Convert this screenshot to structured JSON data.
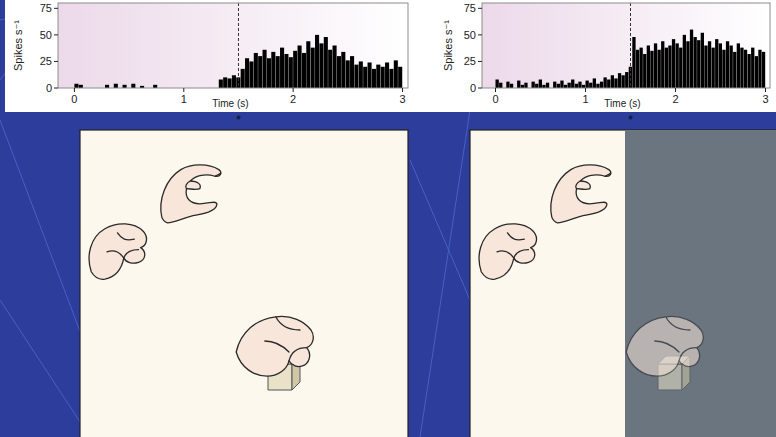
{
  "chart_data": [
    {
      "type": "histogram",
      "xlabel": "Time (s)",
      "ylabel": "Spikes s⁻¹",
      "annotation": "*",
      "event_line": 1.5,
      "xlim": [
        -0.15,
        3.05
      ],
      "xticks": [
        0,
        1,
        2,
        3
      ],
      "ylim": [
        0,
        80
      ],
      "yticks": [
        0,
        25,
        50,
        75
      ],
      "color": "#000000",
      "bins": [
        0,
        0.04,
        0.08,
        0.12,
        0.16,
        0.2,
        0.24,
        0.28,
        0.32,
        0.36,
        0.4,
        0.44,
        0.48,
        0.52,
        0.56,
        0.6,
        0.64,
        0.68,
        0.72,
        0.76,
        0.8,
        0.84,
        0.88,
        0.92,
        0.96,
        1,
        1.04,
        1.08,
        1.12,
        1.16,
        1.2,
        1.24,
        1.28,
        1.32,
        1.36,
        1.4,
        1.44,
        1.48,
        1.52,
        1.56,
        1.6,
        1.64,
        1.68,
        1.72,
        1.76,
        1.8,
        1.84,
        1.88,
        1.92,
        1.96,
        2,
        2.04,
        2.08,
        2.12,
        2.16,
        2.2,
        2.24,
        2.28,
        2.32,
        2.36,
        2.4,
        2.44,
        2.48,
        2.52,
        2.56,
        2.6,
        2.64,
        2.68,
        2.72,
        2.76,
        2.8,
        2.84,
        2.88,
        2.92,
        2.96,
        3
      ],
      "values": [
        4,
        3,
        0,
        0,
        0,
        0,
        0,
        3,
        0,
        4,
        0,
        3,
        0,
        4,
        0,
        2,
        0,
        0,
        3,
        0,
        0,
        0,
        0,
        0,
        0,
        0,
        0,
        0,
        0,
        0,
        0,
        0,
        0,
        8,
        10,
        9,
        12,
        10,
        18,
        28,
        25,
        33,
        30,
        36,
        28,
        34,
        30,
        38,
        32,
        29,
        35,
        40,
        33,
        44,
        38,
        50,
        42,
        48,
        36,
        40,
        30,
        34,
        26,
        30,
        22,
        25,
        20,
        24,
        18,
        22,
        20,
        24,
        18,
        26,
        20
      ]
    },
    {
      "type": "histogram",
      "xlabel": "Time (s)",
      "ylabel": "Spikes s⁻¹",
      "annotation": "*",
      "event_line": 1.5,
      "xlim": [
        -0.15,
        3.05
      ],
      "xticks": [
        0,
        1,
        2,
        3
      ],
      "ylim": [
        0,
        80
      ],
      "yticks": [
        0,
        25,
        50,
        75
      ],
      "color": "#000000",
      "bins": [
        0,
        0.04,
        0.08,
        0.12,
        0.16,
        0.2,
        0.24,
        0.28,
        0.32,
        0.36,
        0.4,
        0.44,
        0.48,
        0.52,
        0.56,
        0.6,
        0.64,
        0.68,
        0.72,
        0.76,
        0.8,
        0.84,
        0.88,
        0.92,
        0.96,
        1,
        1.04,
        1.08,
        1.12,
        1.16,
        1.2,
        1.24,
        1.28,
        1.32,
        1.36,
        1.4,
        1.44,
        1.48,
        1.52,
        1.56,
        1.6,
        1.64,
        1.68,
        1.72,
        1.76,
        1.8,
        1.84,
        1.88,
        1.92,
        1.96,
        2,
        2.04,
        2.08,
        2.12,
        2.16,
        2.2,
        2.24,
        2.28,
        2.32,
        2.36,
        2.4,
        2.44,
        2.48,
        2.52,
        2.56,
        2.6,
        2.64,
        2.68,
        2.72,
        2.76,
        2.8,
        2.84,
        2.88,
        2.92,
        2.96,
        3
      ],
      "values": [
        8,
        5,
        0,
        6,
        4,
        0,
        7,
        3,
        5,
        0,
        6,
        4,
        8,
        3,
        5,
        0,
        6,
        4,
        7,
        3,
        5,
        8,
        4,
        6,
        3,
        7,
        5,
        9,
        4,
        6,
        10,
        8,
        12,
        9,
        14,
        12,
        15,
        20,
        48,
        36,
        38,
        32,
        40,
        35,
        42,
        36,
        44,
        38,
        40,
        46,
        42,
        38,
        50,
        44,
        55,
        48,
        45,
        52,
        40,
        44,
        38,
        46,
        42,
        36,
        44,
        40,
        34,
        42,
        38,
        36,
        32,
        38,
        30,
        36,
        34
      ]
    }
  ]
}
